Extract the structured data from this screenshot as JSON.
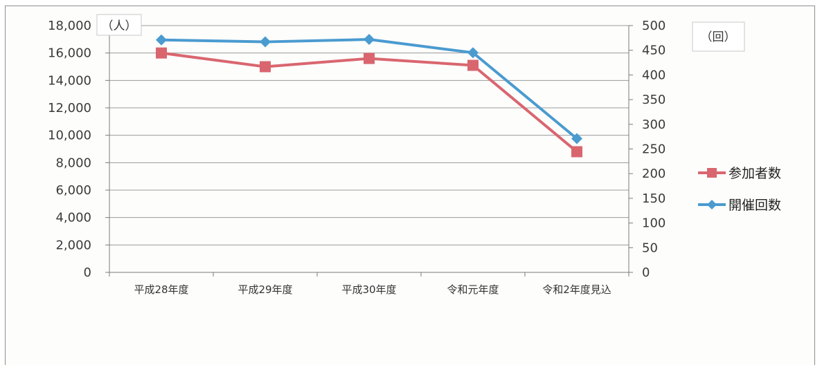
{
  "chart_data": {
    "type": "line",
    "categories": [
      "平成28年度",
      "平成29年度",
      "平成30年度",
      "令和元年度",
      "令和2年度見込"
    ],
    "series": [
      {
        "name": "参加者数",
        "axis": "left",
        "color": "#d9666f",
        "marker": "square",
        "values": [
          16000,
          15000,
          15600,
          15100,
          8800
        ]
      },
      {
        "name": "開催回数",
        "axis": "right",
        "color": "#4a9bd0",
        "marker": "diamond",
        "values": [
          471,
          467,
          472,
          445,
          271
        ]
      }
    ],
    "y_left": {
      "label": "（人）",
      "range": [
        0,
        18000
      ],
      "ticks": [
        "0",
        "2,000",
        "4,000",
        "6,000",
        "8,000",
        "10,000",
        "12,000",
        "14,000",
        "16,000",
        "18,000"
      ]
    },
    "y_right": {
      "label": "（回）",
      "range": [
        0,
        500
      ],
      "ticks": [
        "0",
        "50",
        "100",
        "150",
        "200",
        "250",
        "300",
        "350",
        "400",
        "450",
        "500"
      ]
    },
    "grid": true,
    "legend": "right"
  }
}
